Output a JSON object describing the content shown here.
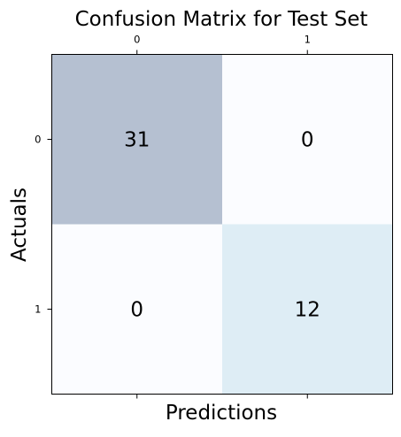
{
  "chart_data": {
    "type": "heatmap",
    "title": "Confusion Matrix for Test Set",
    "xlabel": "Predictions",
    "ylabel": "Actuals",
    "x_ticks": [
      "0",
      "1"
    ],
    "y_ticks": [
      "0",
      "1"
    ],
    "matrix": [
      [
        31,
        0
      ],
      [
        0,
        12
      ]
    ],
    "colormap": "Blues",
    "alpha": 0.3,
    "x_tick_position": "top",
    "cell_colors": [
      [
        "#b5c0d1",
        "#fbfcff"
      ],
      [
        "#fbfcff",
        "#deedf5"
      ]
    ]
  }
}
